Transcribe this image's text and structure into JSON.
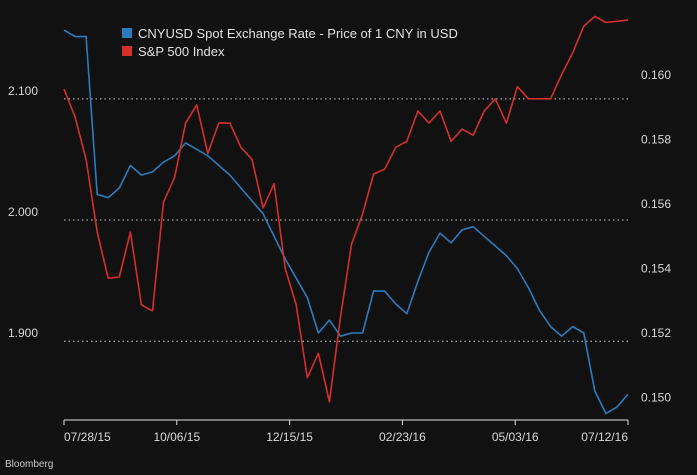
{
  "source": "Bloomberg",
  "chart_data": {
    "type": "line",
    "title": "",
    "x_tick_labels": [
      "07/28/15",
      "10/06/15",
      "12/15/15",
      "02/23/16",
      "05/03/16",
      "07/12/16"
    ],
    "left_axis": {
      "ticks": [
        "2.100",
        "2.000",
        "1.900"
      ],
      "ylim": [
        1.835,
        2.17
      ]
    },
    "right_axis": {
      "ticks": [
        "0.160",
        "0.158",
        "0.156",
        "0.154",
        "0.152",
        "0.150"
      ],
      "ylim": [
        0.1493,
        0.1619
      ]
    },
    "grid": "dotted horizontal at 2.100, 2.000, 1.900",
    "legend_position": "top-center",
    "series": [
      {
        "name": "CNYUSD Spot Exchange Rate - Price of 1 CNY in USD",
        "color": "#2b7bbd",
        "axis": "right",
        "x": [
          0,
          1,
          2,
          3,
          4,
          5,
          6,
          7,
          8,
          9,
          10,
          11,
          12,
          13,
          14,
          15,
          16,
          17,
          18,
          19,
          20,
          21,
          22,
          23,
          24,
          25,
          26,
          27,
          28,
          29,
          30,
          31,
          32,
          33,
          34,
          35,
          36,
          37,
          38,
          39,
          40,
          41,
          42,
          43,
          44,
          45,
          46,
          47,
          48,
          49,
          50,
          51
        ],
        "values": [
          0.1614,
          0.1612,
          0.1612,
          0.1563,
          0.1562,
          0.1565,
          0.1572,
          0.1569,
          0.157,
          0.1573,
          0.1575,
          0.1579,
          0.1577,
          0.1575,
          0.1572,
          0.1569,
          0.1565,
          0.1561,
          0.1557,
          0.155,
          0.1543,
          0.1537,
          0.1531,
          0.152,
          0.1524,
          0.1519,
          0.152,
          0.152,
          0.1533,
          0.1533,
          0.1529,
          0.1526,
          0.1536,
          0.1545,
          0.1551,
          0.1548,
          0.1552,
          0.1553,
          0.155,
          0.1547,
          0.1544,
          0.154,
          0.1534,
          0.1527,
          0.1522,
          0.1519,
          0.1522,
          0.152,
          0.1502,
          0.1495,
          0.1497,
          0.1501
        ]
      },
      {
        "name": "S&P 500 Index",
        "color": "#d42f2b",
        "axis": "left",
        "x": [
          0,
          1,
          2,
          3,
          4,
          5,
          6,
          7,
          8,
          9,
          10,
          11,
          12,
          13,
          14,
          15,
          16,
          17,
          18,
          19,
          20,
          21,
          22,
          23,
          24,
          25,
          26,
          27,
          28,
          29,
          30,
          31,
          32,
          33,
          34,
          35,
          36,
          37,
          38,
          39,
          40,
          41,
          42,
          43,
          44,
          45,
          46,
          47,
          48,
          49,
          50,
          51
        ],
        "values": [
          2.108,
          2.085,
          2.05,
          1.99,
          1.952,
          1.953,
          1.99,
          1.93,
          1.925,
          2.015,
          2.035,
          2.08,
          2.095,
          2.055,
          2.08,
          2.08,
          2.06,
          2.05,
          2.01,
          2.03,
          1.96,
          1.93,
          1.87,
          1.89,
          1.85,
          1.92,
          1.98,
          2.005,
          2.038,
          2.042,
          2.06,
          2.065,
          2.09,
          2.08,
          2.09,
          2.065,
          2.075,
          2.07,
          2.09,
          2.1,
          2.08,
          2.11,
          2.1,
          2.1,
          2.1,
          2.12,
          2.138,
          2.16,
          2.168,
          2.163,
          2.164,
          2.165
        ]
      }
    ]
  }
}
